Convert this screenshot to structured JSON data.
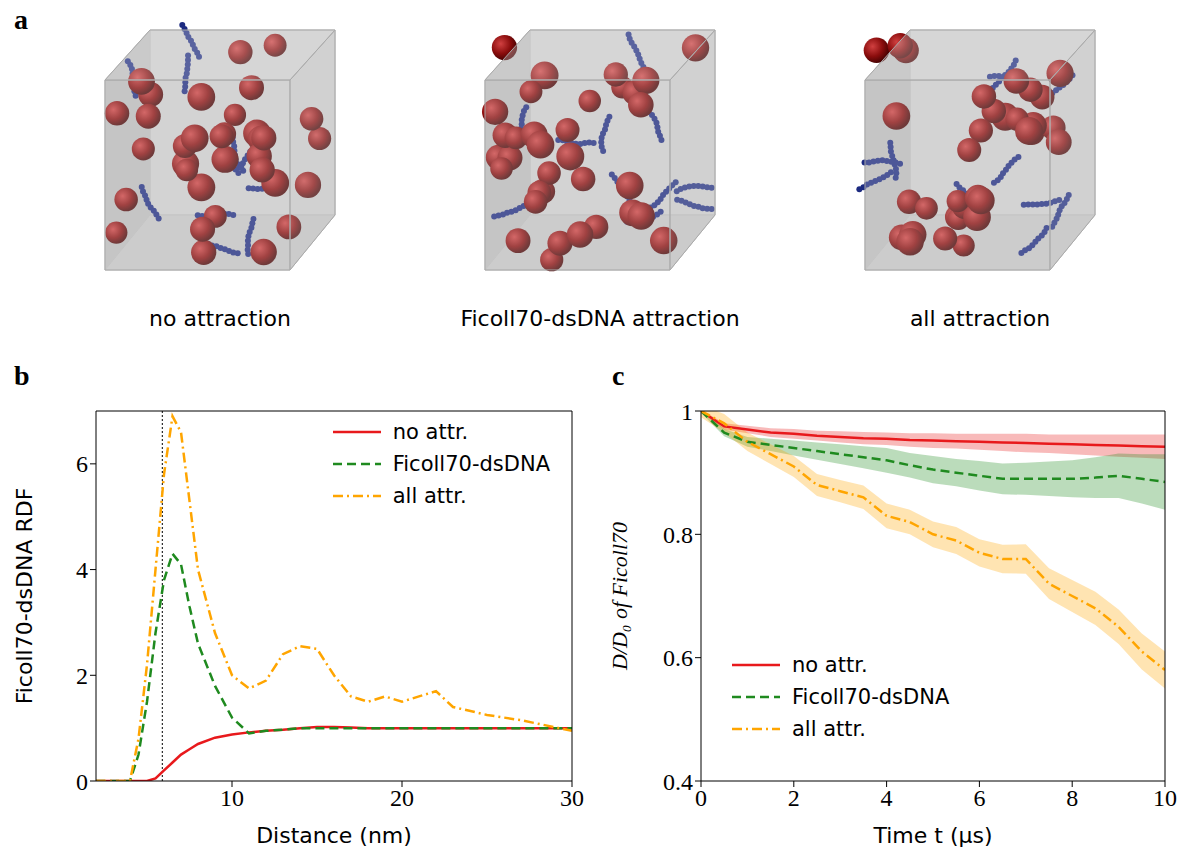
{
  "panel_a": {
    "panel": "a",
    "captions": [
      "no attraction",
      "Ficoll70-dsDNA attraction",
      "all attraction"
    ]
  },
  "chart_data": [
    {
      "panel": "b",
      "type": "line",
      "x_label": "Distance (nm)",
      "y_label": "Ficoll70-dsDNA RDF",
      "x": [
        2,
        4,
        4.5,
        5,
        5.5,
        6,
        6.5,
        7,
        7.5,
        8,
        9,
        10,
        11,
        12,
        13,
        14,
        15,
        16,
        17,
        18,
        19,
        20,
        21,
        22,
        23,
        25,
        27,
        30
      ],
      "series": [
        {
          "name": "no attr.",
          "color": "#e8191c",
          "line_style": "solid",
          "values": [
            0,
            0,
            0,
            0,
            0.05,
            0.2,
            0.35,
            0.5,
            0.6,
            0.7,
            0.82,
            0.88,
            0.92,
            0.95,
            0.97,
            1.0,
            1.02,
            1.02,
            1.01,
            1.0,
            1.0,
            1.0,
            1.0,
            1.0,
            1.0,
            1.0,
            1.0,
            1.0
          ]
        },
        {
          "name": "Ficoll70-dsDNA",
          "color": "#1f8a1f",
          "line_style": "dashed",
          "values": [
            0,
            0,
            0.5,
            1.5,
            2.8,
            3.8,
            4.3,
            4.1,
            3.3,
            2.6,
            1.8,
            1.2,
            0.9,
            0.95,
            0.97,
            1.0,
            1.0,
            1.0,
            1.0,
            1.0,
            1.0,
            1.0,
            1.0,
            1.0,
            1.0,
            1.0,
            1.0,
            1.0
          ]
        },
        {
          "name": "all attr.",
          "color": "#ffa500",
          "line_style": "dashdot",
          "values": [
            0,
            0,
            0.8,
            2.2,
            4.0,
            5.8,
            6.9,
            6.6,
            5.3,
            4.0,
            2.8,
            2.0,
            1.75,
            1.9,
            2.4,
            2.55,
            2.5,
            2.0,
            1.6,
            1.5,
            1.6,
            1.5,
            1.6,
            1.7,
            1.4,
            1.25,
            1.15,
            0.95
          ]
        }
      ],
      "xlim": [
        2,
        30
      ],
      "xticks": [
        10,
        20,
        30
      ],
      "ylim": [
        0,
        7
      ],
      "yticks": [
        0,
        2,
        4,
        6
      ],
      "vline_x": 5.9,
      "legend": "upper right"
    },
    {
      "panel": "c",
      "type": "line",
      "x_label": "Time t (μs)",
      "y_label": "D/D₀  of  Ficoll70",
      "x": [
        0,
        0.5,
        1,
        1.5,
        2,
        2.5,
        3,
        3.5,
        4,
        4.5,
        5,
        5.5,
        6,
        6.5,
        7,
        7.5,
        8,
        8.5,
        9,
        9.5,
        10
      ],
      "series": [
        {
          "name": "no attr.",
          "color": "#e8191c",
          "line_style": "solid",
          "values": [
            1.0,
            0.975,
            0.97,
            0.965,
            0.963,
            0.96,
            0.958,
            0.956,
            0.955,
            0.953,
            0.952,
            0.951,
            0.95,
            0.949,
            0.948,
            0.947,
            0.946,
            0.945,
            0.944,
            0.943,
            0.942
          ],
          "error": [
            0.002,
            0.005,
            0.006,
            0.007,
            0.008,
            0.008,
            0.009,
            0.01,
            0.01,
            0.011,
            0.012,
            0.012,
            0.013,
            0.014,
            0.015,
            0.015,
            0.016,
            0.017,
            0.018,
            0.019,
            0.02
          ]
        },
        {
          "name": "Ficoll70-dsDNA",
          "color": "#1f8a1f",
          "line_style": "dashed",
          "values": [
            1.0,
            0.965,
            0.95,
            0.945,
            0.94,
            0.935,
            0.93,
            0.925,
            0.92,
            0.912,
            0.905,
            0.9,
            0.895,
            0.89,
            0.89,
            0.89,
            0.89,
            0.892,
            0.895,
            0.89,
            0.885
          ],
          "error": [
            0.003,
            0.006,
            0.008,
            0.01,
            0.012,
            0.014,
            0.016,
            0.018,
            0.02,
            0.02,
            0.022,
            0.022,
            0.024,
            0.025,
            0.026,
            0.028,
            0.03,
            0.033,
            0.036,
            0.04,
            0.045
          ]
        },
        {
          "name": "all attr.",
          "color": "#ffa500",
          "line_style": "dashdot",
          "values": [
            1.0,
            0.98,
            0.95,
            0.93,
            0.91,
            0.88,
            0.87,
            0.86,
            0.83,
            0.82,
            0.8,
            0.79,
            0.77,
            0.76,
            0.76,
            0.72,
            0.7,
            0.68,
            0.65,
            0.61,
            0.58
          ],
          "error": [
            0.01,
            0.015,
            0.015,
            0.016,
            0.017,
            0.018,
            0.018,
            0.019,
            0.02,
            0.02,
            0.021,
            0.022,
            0.022,
            0.023,
            0.024,
            0.025,
            0.026,
            0.027,
            0.028,
            0.029,
            0.03
          ]
        }
      ],
      "xlim": [
        0,
        10
      ],
      "xticks": [
        0,
        2,
        4,
        6,
        8,
        10
      ],
      "ylim": [
        0.4,
        1
      ],
      "yticks": [
        0.4,
        0.6,
        0.8,
        1
      ],
      "legend": "lower left"
    }
  ]
}
